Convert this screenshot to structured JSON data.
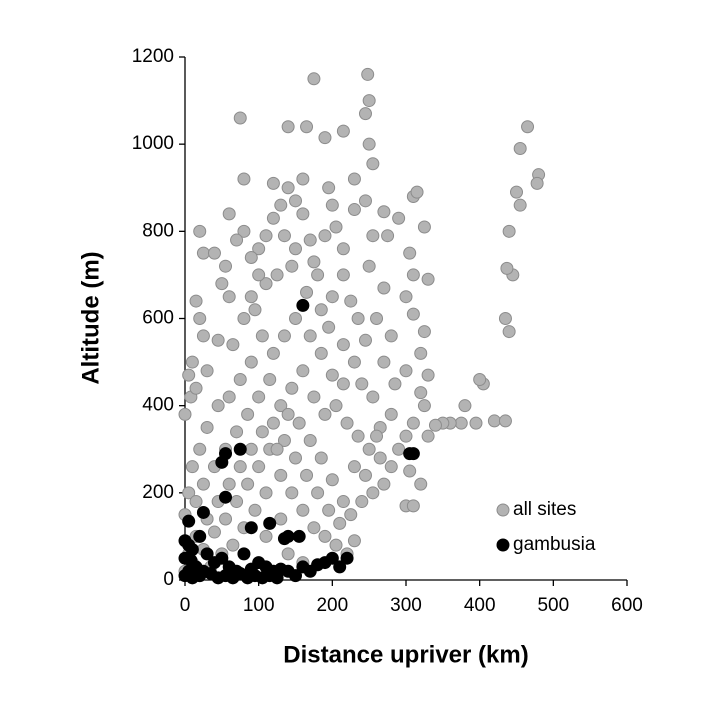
{
  "chart_data": {
    "type": "scatter",
    "x_label": "Distance upriver (km)",
    "y_label": "Altitude (m)",
    "xlim": [
      0,
      600
    ],
    "xticks": [
      0,
      100,
      200,
      300,
      400,
      500,
      600
    ],
    "ylim": [
      0,
      1200
    ],
    "yticks": [
      0,
      200,
      400,
      600,
      800,
      1000,
      1200
    ],
    "grid": false,
    "legend": "lower right",
    "series": [
      {
        "name": "all sites",
        "color": "#b3b3b3",
        "x": [
          175,
          248,
          250,
          245,
          75,
          140,
          165,
          215,
          190,
          250,
          255,
          160,
          80,
          230,
          195,
          120,
          465,
          455,
          480,
          478,
          450,
          455,
          440,
          445,
          437,
          435,
          440,
          405,
          400,
          380,
          375,
          360,
          350,
          340,
          330,
          420,
          435,
          395,
          310,
          315,
          290,
          270,
          275,
          325,
          305,
          310,
          330,
          300,
          310,
          325,
          320,
          300,
          330,
          320,
          325,
          310,
          300,
          290,
          305,
          320,
          300,
          310,
          280,
          260,
          270,
          250,
          255,
          245,
          230,
          215,
          205,
          200,
          190,
          180,
          170,
          160,
          150,
          140,
          130,
          120,
          110,
          100,
          90,
          80,
          70,
          60,
          20,
          25,
          40,
          55,
          50,
          60,
          15,
          20,
          25,
          10,
          5,
          0,
          8,
          15,
          30,
          45,
          65,
          80,
          95,
          110,
          125,
          145,
          165,
          185,
          200,
          215,
          225,
          235,
          245,
          230,
          215,
          200,
          185,
          170,
          150,
          135,
          120,
          105,
          90,
          75,
          60,
          45,
          30,
          20,
          10,
          5,
          0,
          15,
          25,
          40,
          55,
          70,
          85,
          100,
          115,
          130,
          145,
          160,
          175,
          190,
          205,
          220,
          235,
          250,
          265,
          280,
          270,
          255,
          240,
          225,
          210,
          195,
          180,
          165,
          150,
          135,
          120,
          105,
          90,
          75,
          60,
          45,
          30,
          15,
          5,
          0,
          10,
          25,
          40,
          55,
          70,
          85,
          100,
          115,
          130,
          145,
          160,
          175,
          190,
          205,
          220,
          230,
          215,
          200,
          185,
          170,
          155,
          140,
          125,
          110,
          95,
          80,
          65,
          50,
          35,
          20,
          140,
          160,
          110,
          130,
          280,
          265,
          285,
          270,
          255,
          240,
          175,
          150,
          135,
          100,
          90,
          195,
          215,
          230,
          245,
          260
        ],
        "values": [
          1150,
          1160,
          1100,
          1070,
          1060,
          1040,
          1040,
          1030,
          1015,
          1000,
          955,
          920,
          920,
          920,
          900,
          910,
          1040,
          990,
          930,
          910,
          890,
          860,
          800,
          700,
          715,
          600,
          570,
          450,
          460,
          400,
          360,
          360,
          360,
          355,
          330,
          365,
          365,
          360,
          880,
          890,
          830,
          845,
          790,
          810,
          750,
          700,
          690,
          650,
          610,
          570,
          520,
          480,
          470,
          430,
          400,
          360,
          330,
          300,
          250,
          220,
          170,
          170,
          560,
          600,
          670,
          720,
          790,
          870,
          850,
          760,
          810,
          860,
          790,
          700,
          780,
          840,
          870,
          900,
          860,
          830,
          790,
          760,
          740,
          800,
          780,
          840,
          800,
          750,
          750,
          720,
          680,
          650,
          640,
          600,
          560,
          500,
          470,
          380,
          420,
          440,
          480,
          550,
          540,
          600,
          620,
          680,
          700,
          720,
          660,
          620,
          650,
          700,
          640,
          600,
          550,
          500,
          450,
          470,
          520,
          560,
          600,
          560,
          520,
          560,
          500,
          460,
          420,
          400,
          350,
          300,
          260,
          200,
          150,
          180,
          220,
          260,
          300,
          340,
          380,
          420,
          460,
          400,
          440,
          480,
          420,
          380,
          400,
          360,
          330,
          300,
          280,
          260,
          220,
          200,
          180,
          150,
          130,
          160,
          200,
          240,
          280,
          320,
          360,
          340,
          300,
          260,
          220,
          180,
          140,
          100,
          60,
          20,
          40,
          70,
          110,
          140,
          180,
          220,
          260,
          300,
          240,
          200,
          160,
          120,
          100,
          80,
          60,
          90,
          180,
          230,
          280,
          320,
          360,
          380,
          300,
          200,
          160,
          120,
          80,
          60,
          30,
          10,
          60,
          40,
          100,
          140,
          380,
          350,
          450,
          500,
          420,
          450,
          730,
          760,
          790,
          700,
          650,
          580,
          540,
          260,
          240,
          330
        ]
      },
      {
        "name": "gambusia",
        "color": "#000000",
        "x": [
          160,
          75,
          55,
          50,
          55,
          25,
          5,
          310,
          305,
          90,
          115,
          135,
          140,
          155,
          0,
          5,
          10,
          20,
          30,
          40,
          50,
          60,
          70,
          80,
          90,
          100,
          110,
          120,
          130,
          150,
          160,
          170,
          180,
          190,
          200,
          210,
          220,
          0,
          5,
          10,
          15,
          20,
          25,
          35,
          45,
          55,
          65,
          75,
          85,
          95,
          105,
          115,
          125,
          140,
          0,
          8,
          12
        ],
        "values": [
          630,
          300,
          290,
          270,
          190,
          155,
          135,
          290,
          290,
          120,
          130,
          95,
          100,
          100,
          90,
          80,
          70,
          100,
          60,
          40,
          50,
          30,
          20,
          60,
          25,
          40,
          30,
          20,
          25,
          10,
          30,
          20,
          35,
          40,
          50,
          30,
          50,
          10,
          20,
          5,
          30,
          10,
          20,
          15,
          5,
          10,
          5,
          15,
          5,
          10,
          5,
          10,
          5,
          20,
          50,
          45,
          15
        ]
      }
    ]
  }
}
